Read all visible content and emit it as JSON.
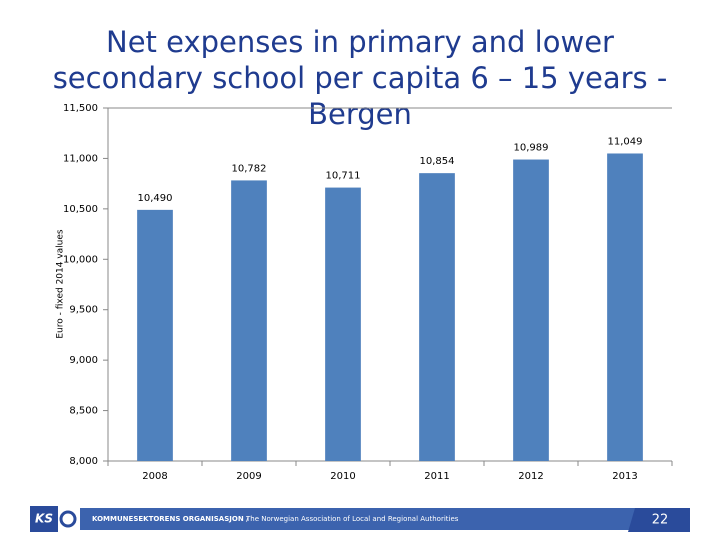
{
  "chart_data": {
    "type": "bar",
    "title": "Net expenses in primary and lower secondary school per capita 6 – 15 years - Bergen",
    "y_label": "Euro - fixed 2014 values",
    "categories": [
      "2008",
      "2009",
      "2010",
      "2011",
      "2012",
      "2013"
    ],
    "values": [
      10490,
      10782,
      10711,
      10854,
      10989,
      11049
    ],
    "value_labels": [
      "10,490",
      "10,782",
      "10,711",
      "10,854",
      "10,989",
      "11,049"
    ],
    "color": "#4f81bd",
    "ylim": [
      8000,
      11500
    ],
    "yticks": [
      {
        "value": 8000,
        "label": "8,000"
      },
      {
        "value": 8500,
        "label": "8,500"
      },
      {
        "value": 9000,
        "label": "9,000"
      },
      {
        "value": 9500,
        "label": "9,500"
      },
      {
        "value": 10000,
        "label": "10,000"
      },
      {
        "value": 10500,
        "label": "10,500"
      },
      {
        "value": 11000,
        "label": "11,000"
      },
      {
        "value": 11500,
        "label": "11,500"
      }
    ],
    "grid": false
  },
  "footer": {
    "logo": "KS",
    "org": "KOMMUNESEKTORENS ORGANISASJON /",
    "subtitle": "The Norwegian Association of Local and Regional Authorities",
    "page_number": "22"
  }
}
